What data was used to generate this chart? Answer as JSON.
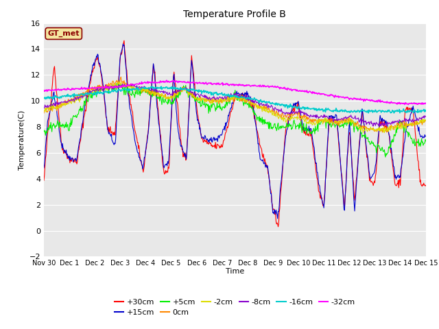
{
  "title": "Temperature Profile B",
  "xlabel": "Time",
  "ylabel": "Temperature(C)",
  "ylim": [
    -2,
    16
  ],
  "yticks": [
    -2,
    0,
    2,
    4,
    6,
    8,
    10,
    12,
    14,
    16
  ],
  "background_color": "#ffffff",
  "plot_bg_color": "#e8e8e8",
  "grid_color": "#ffffff",
  "annotation_text": "GT_met",
  "annotation_bg": "#f5e6a0",
  "annotation_border": "#8b0000",
  "series_colors": {
    "+30cm": "#ff0000",
    "+15cm": "#0000cc",
    "+5cm": "#00ee00",
    "0cm": "#ff8800",
    "-2cm": "#dddd00",
    "-8cm": "#8800cc",
    "-16cm": "#00cccc",
    "-32cm": "#ff00ff"
  },
  "xtick_labels": [
    "Nov 30",
    "Dec 1",
    "Dec 2",
    "Dec 3",
    "Dec 4",
    "Dec 5",
    "Dec 6",
    "Dec 7",
    "Dec 8",
    "Dec 9",
    "Dec 10",
    "Dec 11",
    "Dec 12",
    "Dec 13",
    "Dec 14",
    "Dec 15"
  ],
  "n_points": 720
}
